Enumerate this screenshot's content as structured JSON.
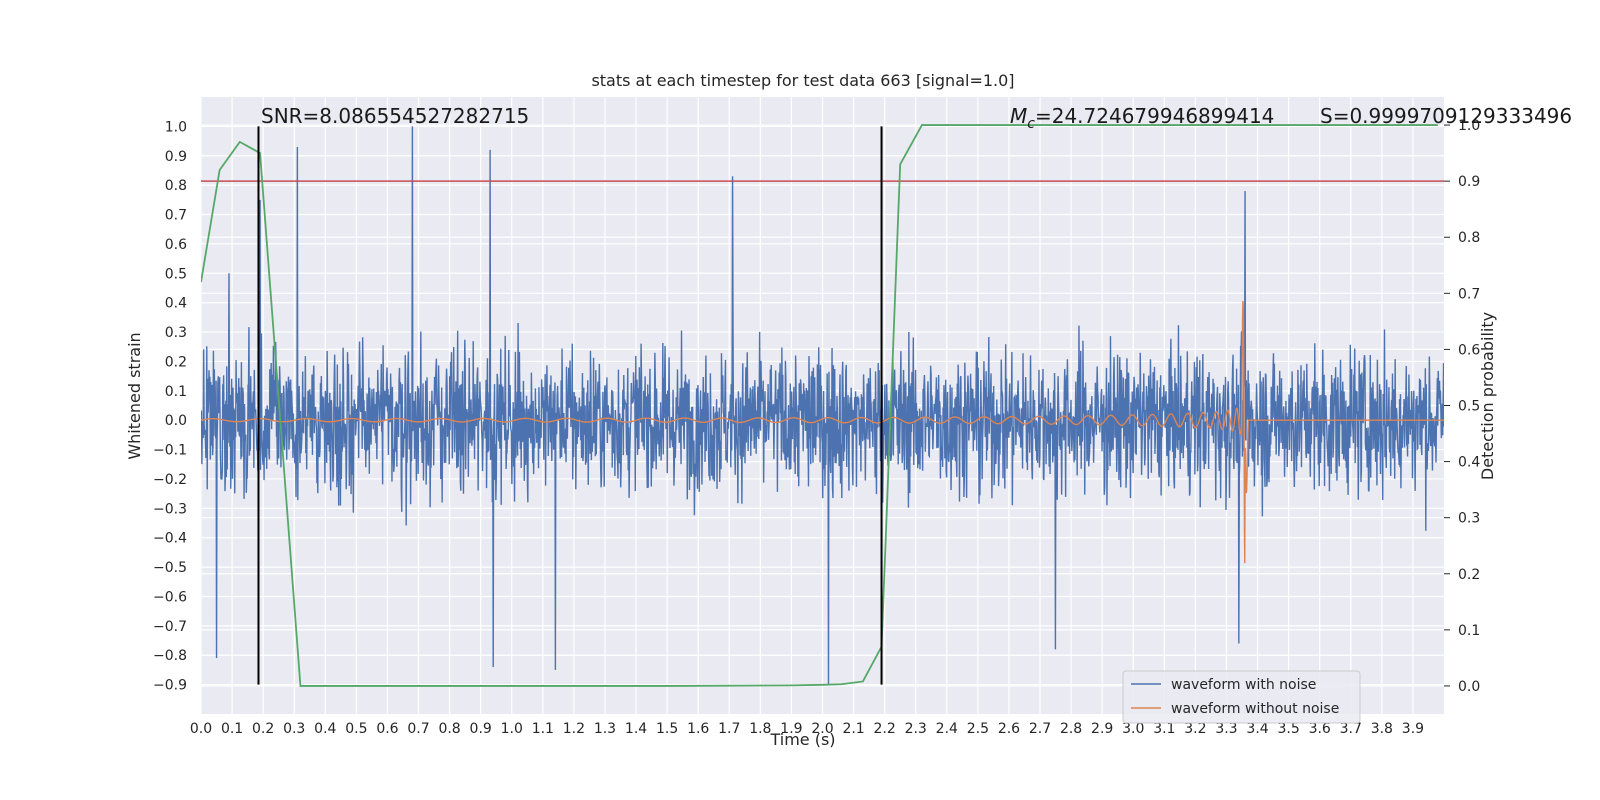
{
  "chart_data": {
    "type": "line",
    "title": "stats at each timestep for test data 663 [signal=1.0]",
    "xlabel": "Time (s)",
    "ylabel": "Whitened strain",
    "y2label": "Detection probability",
    "xlim": [
      0.0,
      4.0
    ],
    "ylim": [
      -1.0,
      1.1
    ],
    "y2lim": [
      -0.05,
      1.05
    ],
    "xticks": [
      0.0,
      0.1,
      0.2,
      0.3,
      0.4,
      0.5,
      0.6,
      0.7,
      0.8,
      0.9,
      1.0,
      1.1,
      1.2,
      1.3,
      1.4,
      1.5,
      1.6,
      1.7,
      1.8,
      1.9,
      2.0,
      2.1,
      2.2,
      2.3,
      2.4,
      2.5,
      2.6,
      2.7,
      2.8,
      2.9,
      3.0,
      3.1,
      3.2,
      3.3,
      3.4,
      3.5,
      3.6,
      3.7,
      3.8,
      3.9
    ],
    "yticks": [
      -0.9,
      -0.8,
      -0.7,
      -0.6,
      -0.5,
      -0.4,
      -0.3,
      -0.2,
      -0.1,
      0.0,
      0.1,
      0.2,
      0.3,
      0.4,
      0.5,
      0.6,
      0.7,
      0.8,
      0.9,
      1.0
    ],
    "y2ticks": [
      0.0,
      0.1,
      0.2,
      0.3,
      0.4,
      0.5,
      0.6,
      0.7,
      0.8,
      0.9,
      1.0
    ],
    "grid": true,
    "legend_position": "lower-right",
    "series": [
      {
        "name": "waveform with noise",
        "color": "#4c72b0",
        "kind": "noisy strain",
        "approx_band": [
          -0.45,
          0.45
        ],
        "peak_spikes": [
          {
            "x": 0.09,
            "y": 0.5
          },
          {
            "x": 0.19,
            "y": 0.75
          },
          {
            "x": 0.31,
            "y": 0.93
          },
          {
            "x": 0.68,
            "y": 1.0
          },
          {
            "x": 0.93,
            "y": 0.92
          },
          {
            "x": 1.71,
            "y": 0.83
          },
          {
            "x": 3.36,
            "y": 0.78
          }
        ],
        "trough_spikes": [
          {
            "x": 0.05,
            "y": -0.81
          },
          {
            "x": 0.94,
            "y": -0.84
          },
          {
            "x": 1.14,
            "y": -0.85
          },
          {
            "x": 2.02,
            "y": -0.9
          },
          {
            "x": 2.75,
            "y": -0.78
          },
          {
            "x": 3.34,
            "y": -0.76
          }
        ]
      },
      {
        "name": "waveform without noise",
        "color": "#dd8452",
        "kind": "chirp",
        "merger_time": 3.36,
        "max_amplitude": 0.41,
        "min_amplitude": -0.49,
        "start_amplitude": 0.005,
        "start_frequency": 6.5,
        "end_frequency": 160
      },
      {
        "color": "#55a868",
        "axis": "right",
        "x": [
          0.0,
          0.06,
          0.125,
          0.19,
          0.32,
          0.5,
          1.0,
          1.5,
          1.9,
          2.0,
          2.06,
          2.13,
          2.19,
          2.25,
          2.32,
          3.98
        ],
        "y": [
          0.72,
          0.92,
          0.97,
          0.95,
          0.0,
          0.0,
          0.0,
          0.0,
          0.001,
          0.002,
          0.003,
          0.008,
          0.07,
          0.93,
          1.0,
          1.0
        ]
      }
    ],
    "hlines": [
      {
        "y": 0.9,
        "axis": "right",
        "color": "#c44e52"
      }
    ],
    "vlines": [
      {
        "x": 0.185,
        "color": "#000000"
      },
      {
        "x": 2.19,
        "color": "#000000"
      }
    ],
    "annotations": {
      "snr": "SNR=8.086554527282715",
      "mc_symbol": "M",
      "mc_sub": "c",
      "mc_value": "=24.724679946899414",
      "s": "S=0.9999709129333496"
    }
  }
}
